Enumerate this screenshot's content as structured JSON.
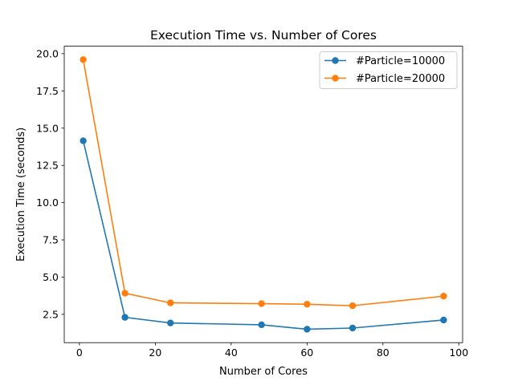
{
  "chart_data": {
    "type": "line",
    "title": "Execution Time vs. Number of Cores",
    "xlabel": "Number of Cores",
    "ylabel": "Execution Time (seconds)",
    "xlim": [
      -4,
      101
    ],
    "ylim": [
      0.6,
      20.5
    ],
    "x_ticks": [
      0,
      20,
      40,
      60,
      80,
      100
    ],
    "x_tick_labels": [
      "0",
      "20",
      "40",
      "60",
      "80",
      "100"
    ],
    "y_ticks": [
      2.5,
      5.0,
      7.5,
      10.0,
      12.5,
      15.0,
      17.5,
      20.0
    ],
    "y_tick_labels": [
      "2.5",
      "5.0",
      "7.5",
      "10.0",
      "12.5",
      "15.0",
      "17.5",
      "20.0"
    ],
    "grid": false,
    "legend_position": "top-right",
    "x": [
      1,
      12,
      24,
      48,
      60,
      72,
      96
    ],
    "series": [
      {
        "name": "#Particle=10000",
        "color": "#1f77b4",
        "values": [
          14.15,
          2.3,
          1.92,
          1.8,
          1.5,
          1.58,
          2.12
        ]
      },
      {
        "name": "#Particle=20000",
        "color": "#ff7f0e",
        "values": [
          19.6,
          3.92,
          3.27,
          3.22,
          3.18,
          3.08,
          3.72
        ]
      }
    ]
  }
}
